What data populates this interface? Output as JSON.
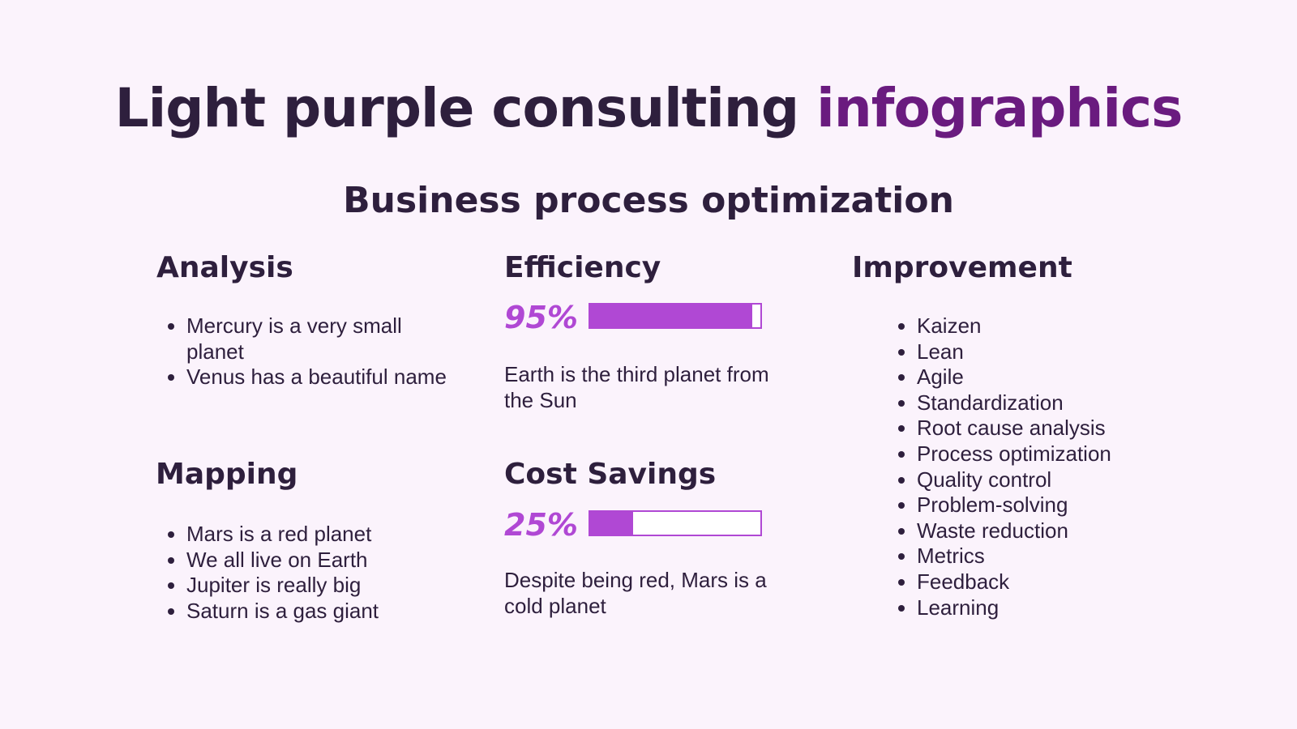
{
  "header": {
    "title_main": "Light purple consulting",
    "title_accent": "infographics",
    "subtitle": "Business process optimization"
  },
  "analysis": {
    "title": "Analysis",
    "items": [
      "Mercury is a very small planet",
      "Venus has a beautiful name"
    ]
  },
  "mapping": {
    "title": "Mapping",
    "items": [
      "Mars is a red planet",
      "We all live on Earth",
      "Jupiter is really big",
      "Saturn is a gas giant"
    ]
  },
  "efficiency": {
    "title": "Efficiency",
    "value": 95,
    "value_label": "95%",
    "range": [
      0,
      100
    ],
    "text": "Earth is the third planet from the Sun"
  },
  "cost_savings": {
    "title": "Cost Savings",
    "value": 25,
    "value_label": "25%",
    "range": [
      0,
      100
    ],
    "text": "Despite being red, Mars is a cold planet"
  },
  "improvement": {
    "title": "Improvement",
    "items": [
      "Kaizen",
      "Lean",
      "Agile",
      "Standardization",
      "Root cause analysis",
      "Process optimization",
      "Quality control",
      "Problem-solving",
      "Waste reduction",
      "Metrics",
      "Feedback",
      "Learning"
    ]
  }
}
